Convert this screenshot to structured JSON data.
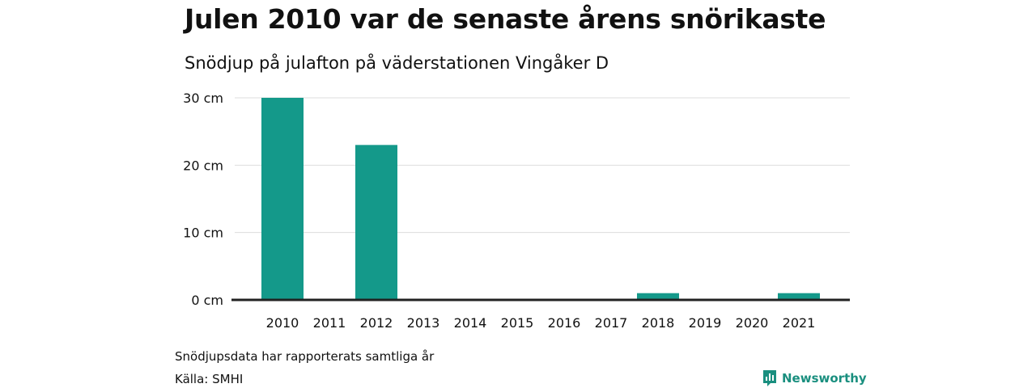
{
  "header": {
    "title": "Julen 2010 var de senaste årens snörikaste",
    "subtitle": "Snödjup på julafton på väderstationen Vingåker D"
  },
  "footer": {
    "note": "Snödjupsdata har rapporterats samtliga år",
    "source": "Källa: SMHI",
    "brand": "Newsworthy",
    "brand_icon": "newsworthy-logo-icon"
  },
  "colors": {
    "bar": "#14998a",
    "grid": "#dddddd",
    "baseline": "#222222",
    "brand": "#1a8f7f"
  },
  "chart_data": {
    "type": "bar",
    "categories": [
      "2010",
      "2011",
      "2012",
      "2013",
      "2014",
      "2015",
      "2016",
      "2017",
      "2018",
      "2019",
      "2020",
      "2021"
    ],
    "values": [
      30,
      0,
      23,
      0,
      0,
      0,
      0,
      0,
      1,
      0,
      0,
      1
    ],
    "unit": "cm",
    "yticks": [
      0,
      10,
      20,
      30
    ],
    "ytick_labels": [
      "0 cm",
      "10 cm",
      "20 cm",
      "30 cm"
    ],
    "ylim": [
      0,
      30
    ],
    "grid": true,
    "legend": "none"
  }
}
